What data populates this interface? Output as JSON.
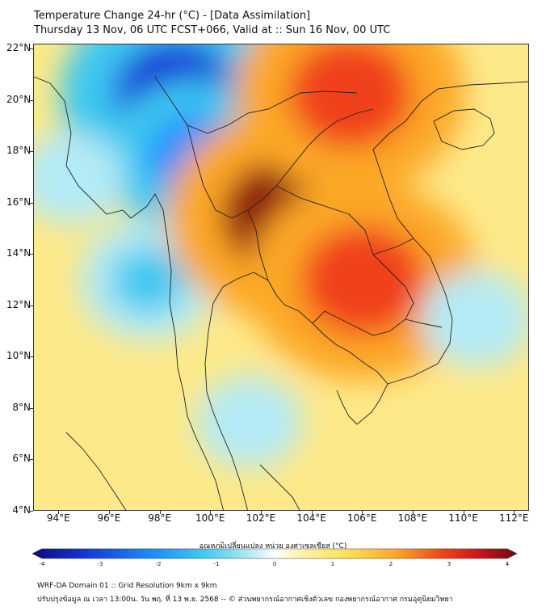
{
  "header": {
    "title_line1": "Temperature Change 24-hr (°C) - [Data Assimilation]",
    "title_line2": "Thursday 13 Nov, 06 UTC FCST+066, Valid at :: Sun 16 Nov, 00 UTC"
  },
  "map": {
    "lat_labels": [
      "22°N",
      "20°N",
      "18°N",
      "16°N",
      "14°N",
      "12°N",
      "10°N",
      "8°N",
      "6°N",
      "4°N"
    ],
    "lon_labels": [
      "94°E",
      "96°E",
      "98°E",
      "100°E",
      "102°E",
      "104°E",
      "106°E",
      "108°E",
      "110°E",
      "112°E"
    ],
    "background_color": "#fde98a",
    "anomalies": [
      {
        "name": "cooling-north-myanmar",
        "lon": 98.6,
        "lat": 20.2,
        "value": -3.0
      },
      {
        "name": "cooling-shan",
        "lon": 99.4,
        "lat": 17.8,
        "value": -2.0
      },
      {
        "name": "cooling-andaman",
        "lon": 97.5,
        "lat": 13.0,
        "value": -1.2
      },
      {
        "name": "cooling-gulf",
        "lon": 101.5,
        "lat": 7.5,
        "value": -0.6
      },
      {
        "name": "warming-thailand-laos",
        "lon": 103.0,
        "lat": 15.5,
        "value": 3.2
      },
      {
        "name": "warming-cambodia",
        "lon": 106.0,
        "lat": 13.0,
        "value": 3.0
      },
      {
        "name": "warming-north-vietnam",
        "lon": 105.5,
        "lat": 20.3,
        "value": 3.0
      },
      {
        "name": "mild-cooling-south-china-sea",
        "lon": 110.5,
        "lat": 11.5,
        "value": -0.7
      },
      {
        "name": "mild-cooling-bay-of-bengal",
        "lon": 94.5,
        "lat": 17.0,
        "value": -0.6
      }
    ]
  },
  "colorbar": {
    "label": "อุณหภูมิเปลี่ยนแปลง หน่วย องศาเซลเซียส (°C)",
    "min": -4,
    "max": 4,
    "ticks": [
      "-4",
      "-3",
      "-2",
      "-1",
      "0",
      "1",
      "2",
      "3",
      "4"
    ]
  },
  "footer": {
    "line1": "WRF-DA Domain 01 :: Grid Resolution 9km x 9km",
    "line2": "ปรับปรุงข้อมูล ณ เวลา 13:00น. วัน พฤ. ที่ 13 พ.ย. 2568 -- © ส่วนพยากรณ์อากาศเชิงตัวเลข กองพยากรณ์อากาศ กรมอุตุนิยมวิทยา"
  }
}
